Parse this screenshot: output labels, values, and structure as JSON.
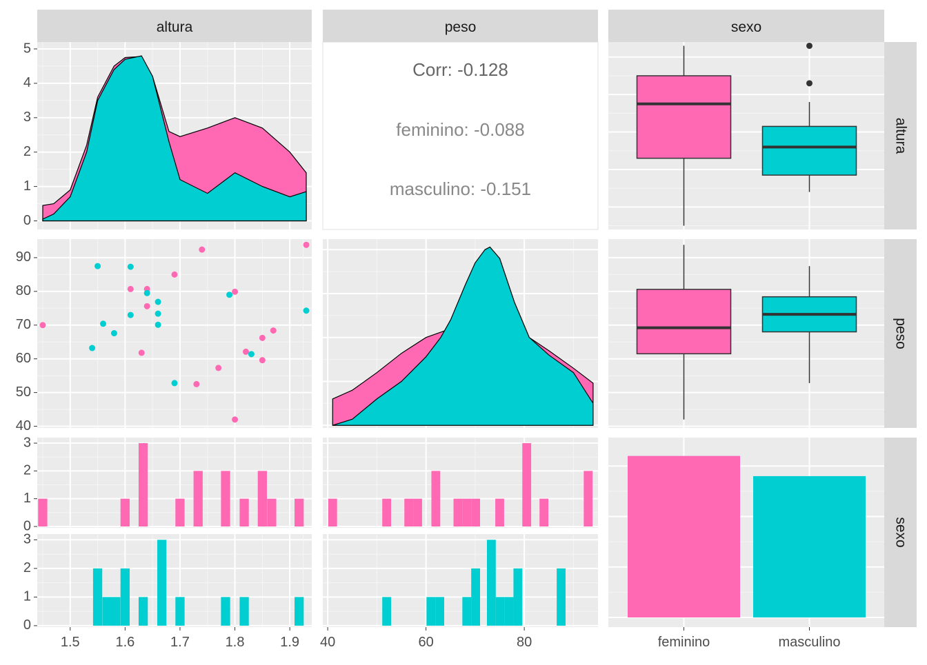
{
  "colors": {
    "feminino": "#FF69B4",
    "masculino": "#00CED1",
    "panel": "#EBEBEB",
    "strip": "#D9D9D9",
    "gridMajor": "#FFFFFF",
    "gridMinor": "#F5F5F5",
    "text": "#4D4D4D",
    "outlier": "#333333"
  },
  "chart_data": {
    "type": "scatter",
    "variables": [
      "altura",
      "peso",
      "sexo"
    ],
    "strip_labels": {
      "top": [
        "altura",
        "peso",
        "sexo"
      ],
      "right": [
        "altura",
        "peso",
        "sexo"
      ]
    },
    "groups": [
      "feminino",
      "masculino"
    ],
    "axes": {
      "altura": {
        "lim": [
          1.44,
          1.94
        ],
        "ticks": [
          1.5,
          1.6,
          1.7,
          1.8,
          1.9
        ],
        "tick_labels": [
          "1.5",
          "1.6",
          "1.7",
          "1.8",
          "1.9"
        ]
      },
      "peso": {
        "lim": [
          39,
          95
        ],
        "ticks": [
          40,
          60,
          80
        ],
        "tick_labels": [
          "40",
          "60",
          "80"
        ]
      },
      "density_y": {
        "lim": [
          -0.25,
          5.2
        ],
        "ticks": [
          0,
          1,
          2,
          3,
          4,
          5
        ],
        "tick_labels": [
          "0",
          "1",
          "2",
          "3",
          "4",
          "5"
        ]
      },
      "scatter_y": {
        "lim": [
          39.5,
          95.5
        ],
        "ticks": [
          40,
          50,
          60,
          70,
          80,
          90
        ],
        "tick_labels": [
          "40",
          "50",
          "60",
          "70",
          "80",
          "90"
        ]
      },
      "count_y": {
        "lim": [
          -0.05,
          3.2
        ],
        "ticks": [
          0,
          1,
          2,
          3
        ],
        "tick_labels": [
          "0",
          "1",
          "2",
          "3"
        ]
      },
      "sexo_x": {
        "tick_labels": [
          "feminino",
          "masculino"
        ]
      }
    },
    "correlation": {
      "overall": "Corr: -0.128",
      "by_group": [
        {
          "group": "feminino",
          "text": "feminino: -0.088"
        },
        {
          "group": "masculino",
          "text": "masculino: -0.151"
        }
      ]
    },
    "scatter_points": {
      "feminino": [
        [
          1.45,
          70
        ],
        [
          1.61,
          80.7
        ],
        [
          1.64,
          80.7
        ],
        [
          1.64,
          75.6
        ],
        [
          1.63,
          61.8
        ],
        [
          1.69,
          85
        ],
        [
          1.74,
          92.4
        ],
        [
          1.73,
          52.5
        ],
        [
          1.77,
          57.3
        ],
        [
          1.8,
          79.9
        ],
        [
          1.8,
          42
        ],
        [
          1.82,
          62.1
        ],
        [
          1.85,
          66.2
        ],
        [
          1.85,
          59.6
        ],
        [
          1.87,
          68.4
        ],
        [
          1.93,
          93.8
        ]
      ],
      "masculino": [
        [
          1.55,
          87.5
        ],
        [
          1.56,
          70.4
        ],
        [
          1.58,
          67.6
        ],
        [
          1.54,
          63.2
        ],
        [
          1.61,
          87.3
        ],
        [
          1.61,
          73
        ],
        [
          1.64,
          79.5
        ],
        [
          1.66,
          76.9
        ],
        [
          1.66,
          73.4
        ],
        [
          1.66,
          70.1
        ],
        [
          1.69,
          52.8
        ],
        [
          1.79,
          79
        ],
        [
          1.83,
          61.4
        ],
        [
          1.93,
          74.3
        ]
      ]
    },
    "density_altura": {
      "x": [
        1.45,
        1.47,
        1.5,
        1.53,
        1.55,
        1.58,
        1.6,
        1.63,
        1.65,
        1.68,
        1.7,
        1.75,
        1.8,
        1.85,
        1.9,
        1.93
      ],
      "feminino_stacked_top": [
        0.45,
        0.5,
        0.9,
        2.2,
        3.6,
        4.5,
        4.75,
        4.78,
        4.2,
        2.6,
        2.45,
        2.7,
        3.0,
        2.7,
        2.0,
        1.4
      ],
      "masculino": [
        0.05,
        0.2,
        0.7,
        2.0,
        3.5,
        4.4,
        4.7,
        4.8,
        4.2,
        2.3,
        1.2,
        0.8,
        1.4,
        1.0,
        0.7,
        0.85
      ]
    },
    "density_peso": {
      "x": [
        41,
        45,
        50,
        55,
        60,
        63,
        65,
        68,
        70,
        72,
        73,
        75,
        78,
        81,
        85,
        90,
        94
      ],
      "feminino_stacked_top": [
        0.3,
        0.4,
        0.6,
        0.82,
        1.0,
        1.06,
        1.1,
        1.5,
        1.82,
        2.0,
        2.03,
        1.9,
        1.4,
        1.0,
        0.85,
        0.65,
        0.48
      ],
      "masculino": [
        0.0,
        0.07,
        0.3,
        0.5,
        0.78,
        1.0,
        1.2,
        1.6,
        1.85,
        2.0,
        2.03,
        1.9,
        1.4,
        1.0,
        0.8,
        0.6,
        0.25
      ],
      "ylim": [
        -0.03,
        2.12
      ]
    },
    "boxplot_altura": {
      "feminino": {
        "whisker_low": 1.45,
        "q1": 1.63,
        "median": 1.775,
        "q3": 1.85,
        "whisker_high": 1.93,
        "outliers": []
      },
      "masculino": {
        "whisker_low": 1.54,
        "q1": 1.585,
        "median": 1.66,
        "q3": 1.715,
        "whisker_high": 1.78,
        "outliers": [
          1.83,
          1.93
        ]
      }
    },
    "boxplot_peso": {
      "feminino": {
        "whisker_low": 42,
        "q1": 61.5,
        "median": 69.2,
        "q3": 80.6,
        "whisker_high": 93.8,
        "outliers": []
      },
      "masculino": {
        "whisker_low": 52.8,
        "q1": 68,
        "median": 73.2,
        "q3": 78.4,
        "whisker_high": 87.5,
        "outliers": []
      }
    },
    "bar_sexo": {
      "categories": [
        "feminino",
        "masculino"
      ],
      "values": [
        16,
        14
      ],
      "ylim": [
        0,
        17
      ]
    },
    "histogram_altura": {
      "bin_width": 0.0167,
      "feminino": [
        [
          1.45,
          1
        ],
        [
          1.6,
          1
        ],
        [
          1.633,
          3
        ],
        [
          1.7,
          1
        ],
        [
          1.733,
          2
        ],
        [
          1.783,
          2
        ],
        [
          1.817,
          1
        ],
        [
          1.85,
          2
        ],
        [
          1.867,
          1
        ],
        [
          1.917,
          1
        ]
      ],
      "masculino": [
        [
          1.55,
          2
        ],
        [
          1.567,
          1
        ],
        [
          1.583,
          1
        ],
        [
          1.6,
          2
        ],
        [
          1.633,
          1
        ],
        [
          1.667,
          3
        ],
        [
          1.7,
          1
        ],
        [
          1.783,
          1
        ],
        [
          1.817,
          1
        ],
        [
          1.917,
          1
        ]
      ]
    },
    "histogram_peso": {
      "bin_width": 1.8,
      "feminino": [
        [
          41,
          1
        ],
        [
          52,
          1
        ],
        [
          56.5,
          1
        ],
        [
          58.3,
          1
        ],
        [
          62,
          2
        ],
        [
          66.5,
          1
        ],
        [
          68.3,
          1
        ],
        [
          70.1,
          1
        ],
        [
          75,
          1
        ],
        [
          80.5,
          3
        ],
        [
          84,
          1
        ],
        [
          93,
          2
        ]
      ],
      "masculino": [
        [
          52,
          1
        ],
        [
          61,
          1
        ],
        [
          62.8,
          1
        ],
        [
          68.3,
          1
        ],
        [
          70.1,
          2
        ],
        [
          73.3,
          3
        ],
        [
          75.1,
          1
        ],
        [
          76.9,
          1
        ],
        [
          78.7,
          2
        ],
        [
          87.5,
          2
        ]
      ]
    }
  }
}
